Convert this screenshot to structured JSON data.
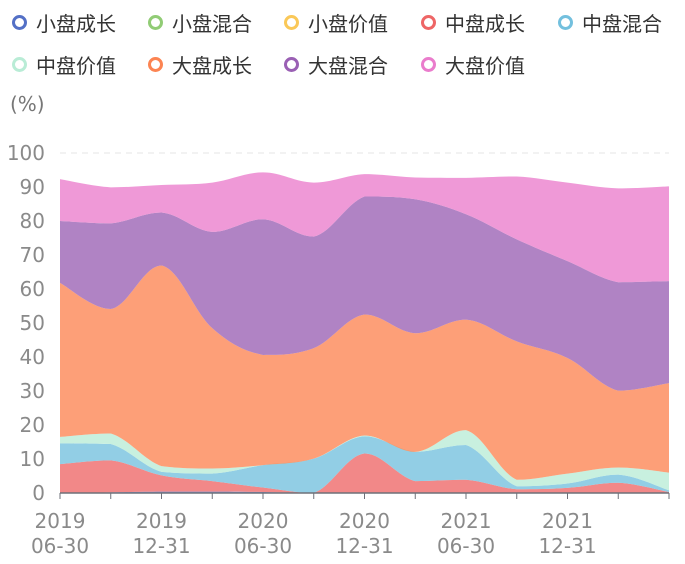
{
  "chart_data": {
    "type": "area",
    "stacked": true,
    "unit_label": "(%)",
    "ylim": [
      0,
      100
    ],
    "yticks": [
      0,
      10,
      20,
      30,
      40,
      50,
      60,
      70,
      80,
      90,
      100
    ],
    "x": [
      "2019-06-30",
      "2019-09-30",
      "2019-12-31",
      "2020-03-31",
      "2020-06-30",
      "2020-09-30",
      "2020-12-31",
      "2021-03-31",
      "2021-06-30",
      "2021-09-30",
      "2021-12-31",
      "2022-03-31",
      "2022-06-30"
    ],
    "xtick_labels": [
      {
        "index": 0,
        "line1": "2019",
        "line2": "06-30"
      },
      {
        "index": 2,
        "line1": "2019",
        "line2": "12-31"
      },
      {
        "index": 4,
        "line1": "2020",
        "line2": "06-30"
      },
      {
        "index": 6,
        "line1": "2020",
        "line2": "12-31"
      },
      {
        "index": 8,
        "line1": "2021",
        "line2": "06-30"
      },
      {
        "index": 10,
        "line1": "2021",
        "line2": "12-31"
      }
    ],
    "legend_position": "top",
    "series": [
      {
        "name": "小盘成长",
        "color": "#5470c6",
        "values": [
          0,
          0.2,
          0.4,
          0.4,
          0.3,
          0,
          0,
          0,
          0,
          0,
          0,
          0,
          0
        ]
      },
      {
        "name": "小盘混合",
        "color": "#91cc75",
        "values": [
          0,
          0,
          0,
          0,
          0,
          0,
          0,
          0,
          0,
          0,
          0,
          0,
          0
        ]
      },
      {
        "name": "小盘价值",
        "color": "#fac858",
        "values": [
          0,
          0,
          0,
          0,
          0,
          0,
          0,
          0,
          0,
          0,
          0,
          0,
          0
        ]
      },
      {
        "name": "中盘成长",
        "color": "#ee6666",
        "values": [
          8.5,
          9.4,
          4.8,
          3.1,
          1.3,
          0,
          11.6,
          3.5,
          3.9,
          1.1,
          1.5,
          3.0,
          0.3
        ]
      },
      {
        "name": "中盘混合",
        "color": "#73c0de",
        "values": [
          6.1,
          4.8,
          1.0,
          2.2,
          6.6,
          10.1,
          5.1,
          8.6,
          10.2,
          0.9,
          1.3,
          2.4,
          0.5
        ]
      },
      {
        "name": "中盘价值",
        "color": "#b9ecd6",
        "values": [
          1.9,
          3.1,
          1.7,
          1.5,
          0,
          0,
          0.2,
          0,
          4.4,
          1.9,
          2.9,
          2.1,
          5.2
        ]
      },
      {
        "name": "大盘成长",
        "color": "#fc8452",
        "values": [
          45.3,
          36.6,
          59.0,
          41.3,
          32.4,
          32.5,
          35.6,
          34.9,
          32.5,
          40.7,
          34.0,
          22.6,
          26.3
        ]
      },
      {
        "name": "大盘混合",
        "color": "#9a60b4",
        "values": [
          18.2,
          25.2,
          15.6,
          28.3,
          39.9,
          32.8,
          34.7,
          39.4,
          31.0,
          30.0,
          28.5,
          31.9,
          30.0
        ]
      },
      {
        "name": "大盘价值",
        "color": "#ea7ccc",
        "values": [
          12.3,
          10.6,
          8.1,
          14.5,
          13.8,
          15.9,
          6.6,
          6.4,
          10.7,
          18.5,
          23.1,
          27.6,
          27.9
        ]
      }
    ]
  }
}
